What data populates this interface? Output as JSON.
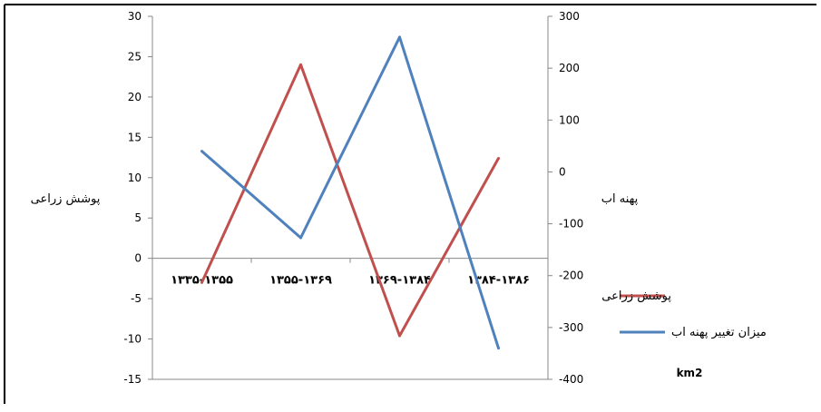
{
  "chart_data": {
    "type": "line",
    "categories": [
      "۱۳۳۵-۱۳۵۵",
      "۱۳۵۵-۱۳۶۹",
      "۱۳۶۹-۱۳۸۴",
      "۱۳۸۴-۱۳۸۶"
    ],
    "y_left": {
      "label": "پوشش زراعی",
      "lim": [
        -15,
        30
      ],
      "ticks": [
        30,
        25,
        20,
        15,
        10,
        5,
        0,
        -5,
        -10,
        -15
      ]
    },
    "y_right": {
      "label": "پهنه اب",
      "lim": [
        -400,
        300
      ],
      "ticks": [
        300,
        200,
        100,
        0,
        -100,
        -200,
        -300,
        -400
      ]
    },
    "series": [
      {
        "name": "پوشش زراعی",
        "axis": "left",
        "color": "#c0504d",
        "values": [
          -3,
          24,
          -9.6,
          12.4
        ]
      },
      {
        "name": "میزان تغییر پهنه اب",
        "axis": "right",
        "color": "#4f81bd",
        "values": [
          40,
          -127,
          260,
          -340
        ]
      }
    ],
    "unit_label": "km2",
    "grid": false,
    "legend": "right"
  }
}
